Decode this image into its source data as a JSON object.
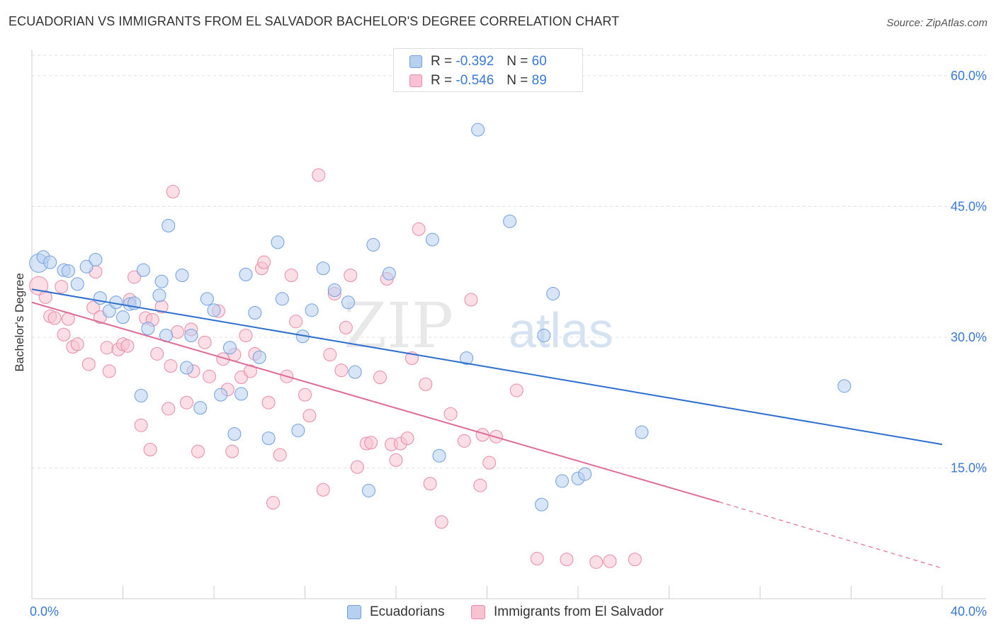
{
  "title": "ECUADORIAN VS IMMIGRANTS FROM EL SALVADOR BACHELOR'S DEGREE CORRELATION CHART",
  "source": "Source: ZipAtlas.com",
  "watermark": {
    "zip": "ZIP",
    "atlas": "atlas"
  },
  "legend_top": [
    {
      "r_label": "R =",
      "r_value": "-0.392",
      "n_label": "N =",
      "n_value": "60"
    },
    {
      "r_label": "R =",
      "r_value": "-0.546",
      "n_label": "N =",
      "n_value": "89"
    }
  ],
  "legend_bottom": [
    "Ecuadorians",
    "Immigrants from El Salvador"
  ],
  "colors": {
    "blue_fill": "#b8d0f0",
    "blue_stroke": "#6f9fe0",
    "blue_line": "#2d6fcf",
    "pink_fill": "#f7c2d2",
    "pink_stroke": "#e88aa8",
    "pink_line": "#e06c98",
    "tick_label": "#3a78d8",
    "grid": "#dddddd"
  },
  "chart_data": {
    "type": "scatter",
    "title": "ECUADORIAN VS IMMIGRANTS FROM EL SALVADOR BACHELOR'S DEGREE CORRELATION CHART",
    "xlabel": "",
    "ylabel": "Bachelor's Degree",
    "xlim": [
      0,
      40
    ],
    "ylim": [
      0,
      63
    ],
    "x_tick_labels": [
      "0.0%",
      "40.0%"
    ],
    "y_ticks": [
      15,
      30,
      45,
      60
    ],
    "y_tick_labels": [
      "15.0%",
      "30.0%",
      "45.0%",
      "60.0%"
    ],
    "grid": true,
    "legend_position": "top-center",
    "series": [
      {
        "name": "Ecuadorians",
        "color": "#6f9fe0",
        "trend": {
          "x": [
            0,
            40
          ],
          "y": [
            35.5,
            17.7
          ]
        },
        "points": [
          [
            0.3,
            38.5
          ],
          [
            0.5,
            39.2
          ],
          [
            0.8,
            38.6
          ],
          [
            1.4,
            37.7
          ],
          [
            1.6,
            37.6
          ],
          [
            2.0,
            36.1
          ],
          [
            2.4,
            38.1
          ],
          [
            2.8,
            38.9
          ],
          [
            3.0,
            34.5
          ],
          [
            3.4,
            33.0
          ],
          [
            3.7,
            34.0
          ],
          [
            4.0,
            32.3
          ],
          [
            4.3,
            33.8
          ],
          [
            4.5,
            33.9
          ],
          [
            4.8,
            23.3
          ],
          [
            4.9,
            37.7
          ],
          [
            5.1,
            31.0
          ],
          [
            5.6,
            34.8
          ],
          [
            5.7,
            36.4
          ],
          [
            5.9,
            30.2
          ],
          [
            6.0,
            42.8
          ],
          [
            6.6,
            37.1
          ],
          [
            6.8,
            26.5
          ],
          [
            7.0,
            30.2
          ],
          [
            7.4,
            21.9
          ],
          [
            7.7,
            34.4
          ],
          [
            8.0,
            33.1
          ],
          [
            8.3,
            23.4
          ],
          [
            8.7,
            28.8
          ],
          [
            8.9,
            18.9
          ],
          [
            9.2,
            23.5
          ],
          [
            9.4,
            37.2
          ],
          [
            9.8,
            32.8
          ],
          [
            10.0,
            27.7
          ],
          [
            10.4,
            18.4
          ],
          [
            10.8,
            40.9
          ],
          [
            11.0,
            34.4
          ],
          [
            11.7,
            19.3
          ],
          [
            11.9,
            30.1
          ],
          [
            12.3,
            33.1
          ],
          [
            12.8,
            37.9
          ],
          [
            13.3,
            35.4
          ],
          [
            13.9,
            34.0
          ],
          [
            14.2,
            26.0
          ],
          [
            14.8,
            12.4
          ],
          [
            15.0,
            40.6
          ],
          [
            15.7,
            37.3
          ],
          [
            17.6,
            41.2
          ],
          [
            17.9,
            16.4
          ],
          [
            19.1,
            27.6
          ],
          [
            19.6,
            53.8
          ],
          [
            21.0,
            43.3
          ],
          [
            22.4,
            10.8
          ],
          [
            22.5,
            30.2
          ],
          [
            22.9,
            35.0
          ],
          [
            23.3,
            13.5
          ],
          [
            24.0,
            13.8
          ],
          [
            24.3,
            14.3
          ],
          [
            26.8,
            19.1
          ],
          [
            35.7,
            24.4
          ]
        ]
      },
      {
        "name": "Immigrants from El Salvador",
        "color": "#e88aa8",
        "trend": {
          "x": [
            0,
            30.2
          ],
          "y": [
            34.0,
            11.1
          ]
        },
        "trend_dashed": {
          "x": [
            30.2,
            40
          ],
          "y": [
            11.1,
            3.5
          ]
        },
        "points": [
          [
            0.3,
            35.9
          ],
          [
            0.6,
            34.6
          ],
          [
            0.8,
            32.4
          ],
          [
            1.0,
            32.2
          ],
          [
            1.3,
            35.8
          ],
          [
            1.4,
            30.3
          ],
          [
            1.6,
            32.1
          ],
          [
            1.8,
            28.9
          ],
          [
            2.0,
            29.2
          ],
          [
            2.5,
            26.9
          ],
          [
            2.7,
            33.4
          ],
          [
            2.8,
            37.5
          ],
          [
            3.0,
            32.3
          ],
          [
            3.3,
            28.8
          ],
          [
            3.4,
            26.1
          ],
          [
            3.8,
            28.6
          ],
          [
            4.0,
            29.2
          ],
          [
            4.2,
            29.0
          ],
          [
            4.3,
            34.3
          ],
          [
            4.5,
            36.9
          ],
          [
            4.8,
            19.9
          ],
          [
            5.0,
            32.2
          ],
          [
            5.2,
            17.1
          ],
          [
            5.3,
            32.0
          ],
          [
            5.5,
            28.1
          ],
          [
            5.7,
            33.5
          ],
          [
            6.0,
            21.8
          ],
          [
            6.1,
            26.7
          ],
          [
            6.2,
            46.7
          ],
          [
            6.4,
            30.6
          ],
          [
            6.8,
            22.5
          ],
          [
            7.0,
            30.9
          ],
          [
            7.1,
            26.1
          ],
          [
            7.3,
            16.9
          ],
          [
            7.6,
            29.4
          ],
          [
            7.8,
            25.5
          ],
          [
            8.2,
            33.0
          ],
          [
            8.4,
            27.5
          ],
          [
            8.6,
            24.0
          ],
          [
            8.8,
            16.9
          ],
          [
            8.9,
            28.0
          ],
          [
            9.2,
            25.4
          ],
          [
            9.4,
            30.2
          ],
          [
            9.6,
            26.1
          ],
          [
            9.8,
            28.1
          ],
          [
            10.1,
            37.9
          ],
          [
            10.2,
            38.6
          ],
          [
            10.4,
            22.5
          ],
          [
            10.6,
            11.0
          ],
          [
            10.9,
            16.5
          ],
          [
            11.2,
            25.5
          ],
          [
            11.4,
            37.1
          ],
          [
            11.6,
            31.8
          ],
          [
            12.0,
            23.4
          ],
          [
            12.2,
            21.0
          ],
          [
            12.6,
            48.6
          ],
          [
            12.8,
            12.5
          ],
          [
            13.1,
            28.0
          ],
          [
            13.3,
            35.0
          ],
          [
            13.6,
            26.2
          ],
          [
            13.8,
            31.1
          ],
          [
            14.0,
            37.1
          ],
          [
            14.3,
            15.1
          ],
          [
            14.7,
            17.8
          ],
          [
            14.9,
            17.9
          ],
          [
            15.3,
            25.4
          ],
          [
            15.6,
            36.7
          ],
          [
            15.8,
            17.7
          ],
          [
            16.0,
            15.9
          ],
          [
            16.2,
            17.8
          ],
          [
            16.5,
            18.4
          ],
          [
            16.7,
            27.6
          ],
          [
            17.0,
            42.4
          ],
          [
            17.3,
            24.6
          ],
          [
            17.5,
            13.2
          ],
          [
            18.0,
            8.8
          ],
          [
            18.4,
            21.2
          ],
          [
            19.0,
            18.1
          ],
          [
            19.3,
            34.3
          ],
          [
            19.7,
            13.0
          ],
          [
            19.8,
            18.8
          ],
          [
            20.1,
            15.6
          ],
          [
            20.4,
            18.6
          ],
          [
            21.3,
            23.9
          ],
          [
            22.2,
            4.6
          ],
          [
            23.5,
            4.5
          ],
          [
            24.8,
            4.2
          ],
          [
            25.4,
            4.3
          ],
          [
            26.5,
            4.5
          ]
        ]
      }
    ]
  }
}
